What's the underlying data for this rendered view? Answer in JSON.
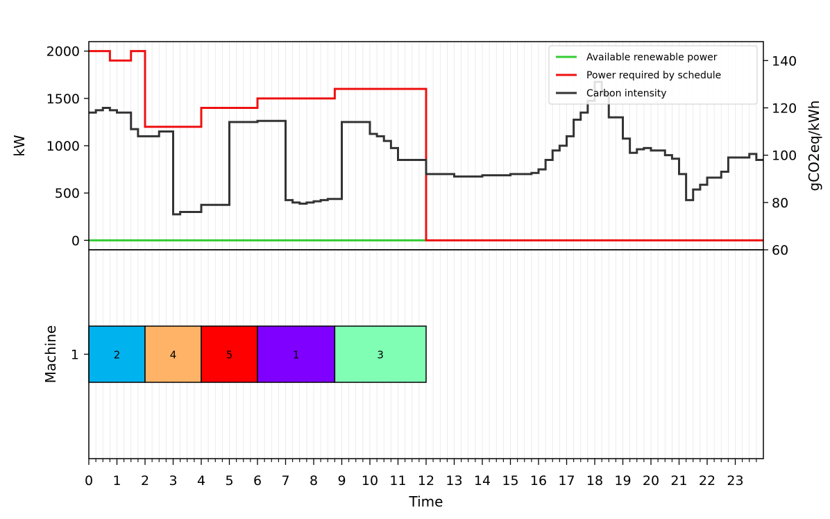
{
  "chart_data": {
    "type": "line",
    "x_axis": {
      "label": "Time",
      "range": [
        0,
        24
      ],
      "ticks": [
        0,
        1,
        2,
        3,
        4,
        5,
        6,
        7,
        8,
        9,
        10,
        11,
        12,
        13,
        14,
        15,
        16,
        17,
        18,
        19,
        20,
        21,
        22,
        23
      ],
      "minor_step": 0.25
    },
    "grid": "vertical minor gridlines",
    "top_panel": {
      "left_axis": {
        "label": "kW",
        "range": [
          -100,
          2100
        ],
        "ticks": [
          0,
          500,
          1000,
          1500,
          2000
        ]
      },
      "right_axis": {
        "label": "gCO2eq/kWh",
        "range": [
          60,
          148
        ],
        "ticks": [
          60,
          80,
          100,
          120,
          140
        ]
      },
      "legend": {
        "position": "top-right",
        "entries": [
          {
            "label": "Available renewable power",
            "color": "#33cc33"
          },
          {
            "label": "Power required by schedule",
            "color": "#ee1111"
          },
          {
            "label": "Carbon intensity",
            "color": "#333333"
          }
        ]
      },
      "series": [
        {
          "name": "Available renewable power",
          "axis": "left",
          "color": "#33cc33",
          "x": [
            0,
            12
          ],
          "y": [
            0,
            0
          ]
        },
        {
          "name": "Power required by schedule",
          "axis": "left",
          "color": "#ee1111",
          "step": true,
          "x": [
            0,
            0.75,
            1.5,
            2,
            4,
            6,
            8.75,
            12,
            24
          ],
          "y": [
            2000,
            1900,
            2000,
            1200,
            1400,
            1500,
            1600,
            0,
            0
          ]
        },
        {
          "name": "Carbon intensity",
          "axis": "right",
          "color": "#333333",
          "step": true,
          "x": [
            0,
            0.25,
            0.5,
            0.75,
            1,
            1.5,
            1.75,
            2.5,
            3,
            3.25,
            4,
            5,
            6,
            7,
            7.25,
            7.5,
            7.75,
            8,
            8.25,
            8.5,
            9,
            10,
            10.25,
            10.5,
            10.75,
            11,
            12,
            13,
            14,
            15,
            15.75,
            16,
            16.25,
            16.5,
            16.75,
            17,
            17.25,
            17.5,
            17.75,
            18,
            18.25,
            18.5,
            19,
            19.25,
            19.5,
            19.75,
            20,
            20.5,
            20.75,
            21,
            21.25,
            21.5,
            21.75,
            22,
            22.5,
            22.75,
            23.5,
            23.75
          ],
          "y": [
            118,
            119,
            120,
            119,
            118,
            111,
            108,
            110,
            75,
            76,
            79,
            114,
            114.5,
            81,
            80,
            79.5,
            80,
            80.5,
            81,
            81.5,
            114,
            109,
            108,
            106,
            103,
            98,
            92,
            91,
            91.5,
            92,
            92.5,
            94,
            98,
            102,
            104,
            108,
            115,
            118,
            123,
            131,
            126,
            116,
            107,
            101,
            102.5,
            103,
            102,
            100,
            98.5,
            92,
            81,
            85.5,
            87.5,
            90.5,
            93,
            99,
            100.5,
            98
          ]
        }
      ]
    },
    "bottom_panel": {
      "y_axis": {
        "label": "Machine",
        "ticks": [
          "1"
        ]
      },
      "tasks": [
        {
          "machine": "1",
          "label": "2",
          "start": 0,
          "end": 2,
          "color": "#00b2ee"
        },
        {
          "machine": "1",
          "label": "4",
          "start": 2,
          "end": 4,
          "color": "#ffb366"
        },
        {
          "machine": "1",
          "label": "5",
          "start": 4,
          "end": 6,
          "color": "#ff0000"
        },
        {
          "machine": "1",
          "label": "1",
          "start": 6,
          "end": 8.75,
          "color": "#7f00ff"
        },
        {
          "machine": "1",
          "label": "3",
          "start": 8.75,
          "end": 12,
          "color": "#80ffb4"
        }
      ]
    }
  }
}
